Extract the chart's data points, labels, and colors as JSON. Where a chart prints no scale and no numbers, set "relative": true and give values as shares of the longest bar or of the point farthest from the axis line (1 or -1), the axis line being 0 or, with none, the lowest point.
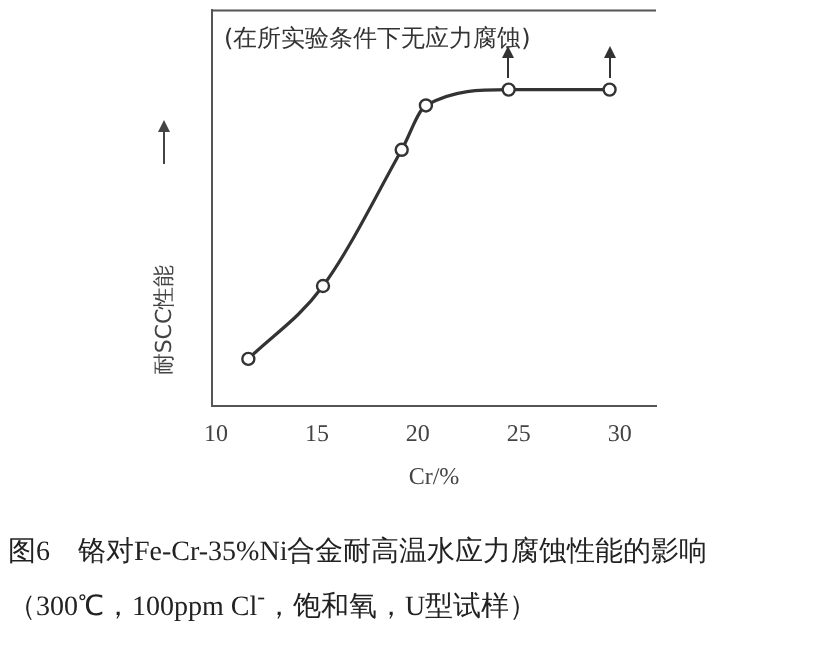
{
  "chart_data": {
    "type": "line",
    "title": "图6　铬对Fe-Cr-35%Ni合金耐高温水应力腐蚀性能的影响（300℃，100ppm Cl$^{-}$，饱和氧，U型试样）",
    "xlabel": "Cr/%",
    "ylabel": "耐SCC性能",
    "relative": true,
    "x": [
      11.6,
      15.3,
      19.2,
      20.4,
      24.5,
      29.5
    ],
    "values": [
      0.15,
      0.38,
      0.81,
      0.95,
      1,
      1
    ],
    "color": "#333333",
    "marker": "circle",
    "grid": false,
    "legend": false,
    "xlim": [
      9.8,
      31.8
    ],
    "xticks": [
      10,
      15,
      20,
      25,
      30
    ],
    "annotations": [
      "(在所实验条件下无应力腐蚀)"
    ]
  }
}
